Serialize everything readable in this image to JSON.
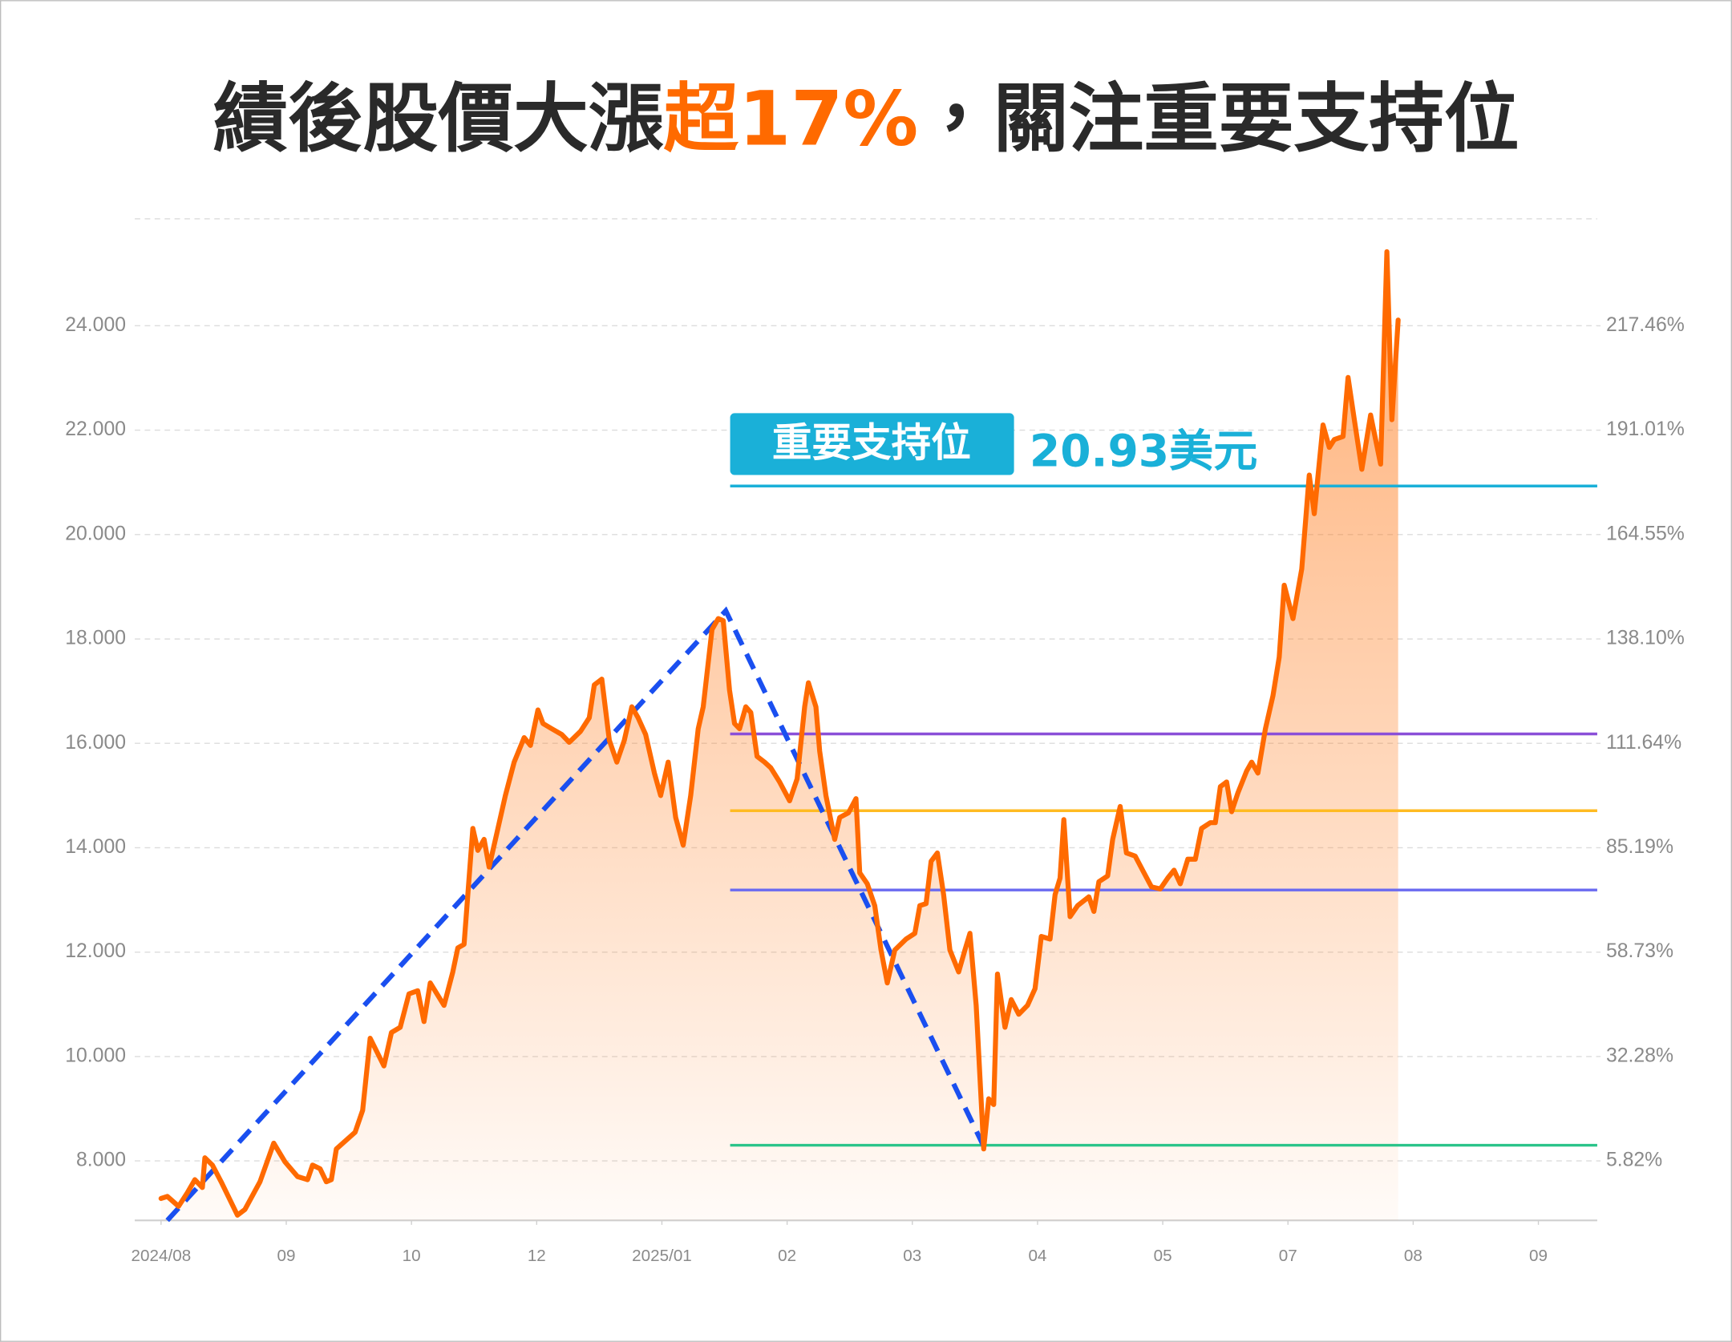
{
  "chart_data": {
    "type": "line",
    "title_parts": [
      {
        "text": "績後股價大漲",
        "color": "#2a2a2a"
      },
      {
        "text": "超17%",
        "color": "#ff6a00"
      },
      {
        "text": "，關注重要支持位",
        "color": "#2a2a2a"
      }
    ],
    "xlim": [
      -0.21,
      11.47
    ],
    "xticks": [
      {
        "value": 0,
        "label": "2024/08"
      },
      {
        "value": 1,
        "label": "09"
      },
      {
        "value": 2,
        "label": "10"
      },
      {
        "value": 3,
        "label": "12"
      },
      {
        "value": 4,
        "label": "2025/01"
      },
      {
        "value": 5,
        "label": "02"
      },
      {
        "value": 6,
        "label": "03"
      },
      {
        "value": 7,
        "label": "04"
      },
      {
        "value": 8,
        "label": "05"
      },
      {
        "value": 9,
        "label": "07"
      },
      {
        "value": 10,
        "label": "08"
      },
      {
        "value": 11,
        "label": "09"
      }
    ],
    "ylim": [
      6.86,
      26.05
    ],
    "yticks": [
      {
        "value": 8,
        "label": "8.000"
      },
      {
        "value": 10,
        "label": "10.000"
      },
      {
        "value": 12,
        "label": "12.000"
      },
      {
        "value": 14,
        "label": "14.000"
      },
      {
        "value": 16,
        "label": "16.000"
      },
      {
        "value": 18,
        "label": "18.000"
      },
      {
        "value": 20,
        "label": "20.000"
      },
      {
        "value": 22,
        "label": "22.000"
      },
      {
        "value": 24,
        "label": "24.000"
      }
    ],
    "y2lim": [
      -9.26,
      244.58
    ],
    "y2ticks": [
      {
        "value": 5.82,
        "label": "5.82%"
      },
      {
        "value": 32.28,
        "label": "32.28%"
      },
      {
        "value": 58.73,
        "label": "58.73%"
      },
      {
        "value": 85.19,
        "label": "85.19%"
      },
      {
        "value": 111.64,
        "label": "111.64%"
      },
      {
        "value": 138.1,
        "label": "138.10%"
      },
      {
        "value": 164.55,
        "label": "164.55%"
      },
      {
        "value": 191.01,
        "label": "191.01%"
      },
      {
        "value": 217.46,
        "label": "217.46%"
      }
    ],
    "grid": true,
    "series": [
      {
        "color": "#ff6a00",
        "area": true,
        "x": [
          0.0,
          0.05,
          0.14,
          0.21,
          0.27,
          0.33,
          0.35,
          0.41,
          0.48,
          0.61,
          0.67,
          0.79,
          0.9,
          0.99,
          1.09,
          1.17,
          1.21,
          1.27,
          1.32,
          1.36,
          1.4,
          1.55,
          1.61,
          1.67,
          1.78,
          1.84,
          1.91,
          1.98,
          2.05,
          2.1,
          2.15,
          2.26,
          2.33,
          2.37,
          2.42,
          2.49,
          2.53,
          2.58,
          2.62,
          2.68,
          2.75,
          2.82,
          2.9,
          2.95,
          3.01,
          3.05,
          3.12,
          3.2,
          3.26,
          3.35,
          3.42,
          3.46,
          3.52,
          3.58,
          3.64,
          3.7,
          3.76,
          3.81,
          3.87,
          3.94,
          3.99,
          4.05,
          4.11,
          4.17,
          4.23,
          4.29,
          4.33,
          4.4,
          4.45,
          4.49,
          4.54,
          4.58,
          4.62,
          4.67,
          4.71,
          4.76,
          4.82,
          4.87,
          4.94,
          5.02,
          5.08,
          5.14,
          5.17,
          5.23,
          5.26,
          5.31,
          5.38,
          5.42,
          5.49,
          5.55,
          5.58,
          5.64,
          5.7,
          5.75,
          5.8,
          5.86,
          5.95,
          6.02,
          6.06,
          6.11,
          6.15,
          6.2,
          6.25,
          6.3,
          6.37,
          6.42,
          6.46,
          6.51,
          6.57,
          6.61,
          6.65,
          6.68,
          6.74,
          6.79,
          6.85,
          6.92,
          6.98,
          7.03,
          7.1,
          7.14,
          7.18,
          7.21,
          7.26,
          7.32,
          7.41,
          7.45,
          7.49,
          7.56,
          7.6,
          7.66,
          7.71,
          7.78,
          7.85,
          7.91,
          7.98,
          8.04,
          8.09,
          8.14,
          8.2,
          8.26,
          8.31,
          8.38,
          8.42,
          8.46,
          8.51,
          8.55,
          8.6,
          8.67,
          8.71,
          8.76,
          8.82,
          8.88,
          8.93,
          8.97,
          9.04,
          9.11,
          9.17,
          9.21,
          9.28,
          9.33,
          9.37,
          9.44,
          9.48,
          9.53,
          9.59,
          9.66,
          9.74,
          9.79,
          9.83,
          9.88
        ],
        "values": [
          7.28,
          7.32,
          7.13,
          7.39,
          7.64,
          7.49,
          8.06,
          7.92,
          7.6,
          6.96,
          7.07,
          7.6,
          8.34,
          7.98,
          7.7,
          7.64,
          7.92,
          7.85,
          7.6,
          7.64,
          8.23,
          8.55,
          8.97,
          10.35,
          9.82,
          10.46,
          10.56,
          11.2,
          11.26,
          10.67,
          11.41,
          10.98,
          11.62,
          12.08,
          12.15,
          14.37,
          13.95,
          14.16,
          13.63,
          14.26,
          15.0,
          15.64,
          16.11,
          15.96,
          16.64,
          16.38,
          16.28,
          16.17,
          16.02,
          16.23,
          16.49,
          17.12,
          17.23,
          16.06,
          15.64,
          16.06,
          16.7,
          16.49,
          16.17,
          15.43,
          15.0,
          15.64,
          14.58,
          14.05,
          15.0,
          16.28,
          16.7,
          18.18,
          18.39,
          18.35,
          17.02,
          16.38,
          16.28,
          16.7,
          16.59,
          15.75,
          15.64,
          15.53,
          15.26,
          14.9,
          15.32,
          16.7,
          17.16,
          16.7,
          15.85,
          15.0,
          14.16,
          14.58,
          14.67,
          14.94,
          13.52,
          13.31,
          12.89,
          12.04,
          11.41,
          12.04,
          12.25,
          12.36,
          12.89,
          12.93,
          13.74,
          13.9,
          13.1,
          12.04,
          11.62,
          12.04,
          12.36,
          10.98,
          8.23,
          9.19,
          9.08,
          11.58,
          10.56,
          11.09,
          10.81,
          10.98,
          11.3,
          12.3,
          12.25,
          13.1,
          13.42,
          14.54,
          12.68,
          12.89,
          13.06,
          12.78,
          13.35,
          13.46,
          14.16,
          14.79,
          13.9,
          13.84,
          13.52,
          13.25,
          13.21,
          13.42,
          13.57,
          13.31,
          13.78,
          13.78,
          14.37,
          14.48,
          14.48,
          15.17,
          15.26,
          14.69,
          15.05,
          15.47,
          15.64,
          15.43,
          16.28,
          16.91,
          17.65,
          19.03,
          18.39,
          19.34,
          21.14,
          20.4,
          22.1,
          21.67,
          21.82,
          21.88,
          23.01,
          22.2,
          21.25,
          22.29,
          21.35,
          25.42,
          22.2,
          24.11
        ]
      }
    ],
    "trendline": {
      "color": "#1a4ff0",
      "x": [
        0.05,
        4.51,
        6.58
      ],
      "values": [
        6.86,
        18.54,
        8.23
      ]
    },
    "reference_lines": [
      {
        "value": 20.93,
        "color": "#1ab0d8",
        "tag": "重要支持位",
        "label": "20.93美元"
      },
      {
        "value": 16.18,
        "color": "#8a4fd8"
      },
      {
        "value": 14.71,
        "color": "#ffbb22"
      },
      {
        "value": 13.19,
        "color": "#6a6af0"
      },
      {
        "value": 8.3,
        "color": "#2bc48a"
      }
    ]
  }
}
